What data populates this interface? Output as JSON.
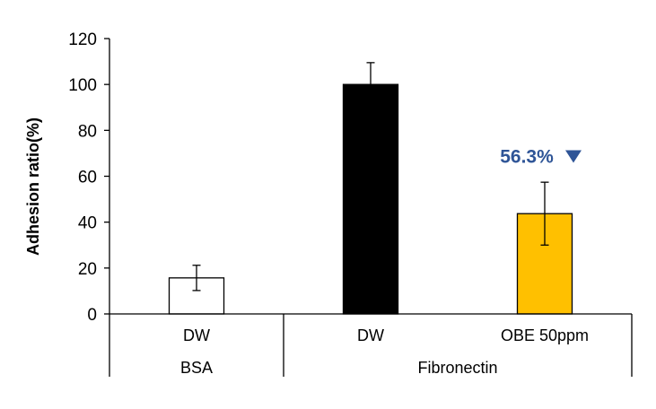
{
  "chart_data": {
    "type": "bar",
    "ylabel": "Adhesion ratio(%)",
    "ylim": [
      0,
      120
    ],
    "yticks": [
      "0",
      "20",
      "40",
      "60",
      "80",
      "100",
      "120"
    ],
    "categories": [
      "DW",
      "DW",
      "OBE 50ppm"
    ],
    "groups": [
      {
        "label": "BSA",
        "span": 1
      },
      {
        "label": "Fibronectin",
        "span": 2
      }
    ],
    "values": [
      15.7,
      100,
      43.7
    ],
    "errors": [
      5.5,
      9.5,
      13.7
    ],
    "bar_fill_colors": [
      "#ffffff",
      "#000000",
      "#ffc000"
    ],
    "bar_edge_color": "#000000",
    "annotation": {
      "text": "56.3%",
      "marker": "down-triangle-icon",
      "color": "#2f5597",
      "bar_index": 2,
      "y": 69
    },
    "grid": false,
    "legend": "none"
  }
}
